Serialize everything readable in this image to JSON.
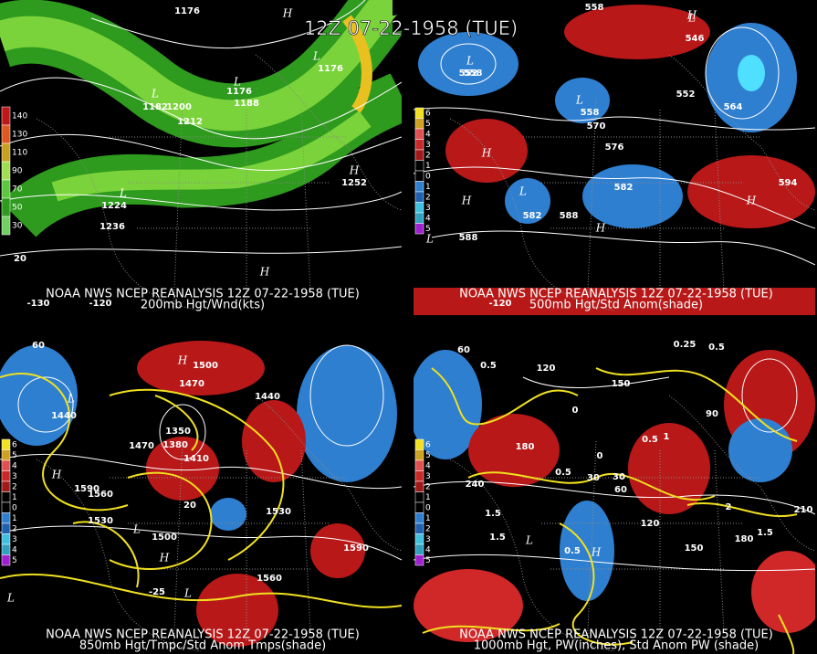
{
  "title": "12Z 07-22-1958 (TUE)",
  "panels": [
    {
      "caption": [
        "NOAA NWS NCEP REANALYSIS 12Z 07-22-1958 (TUE)",
        "200mb Hgt/Wnd(kts)"
      ],
      "legend": [
        "140",
        "130",
        "110",
        "90",
        "70",
        "50",
        "30"
      ],
      "labels": [
        "1176",
        "H",
        "L",
        "1176",
        "L",
        "1182",
        "1200",
        "1212",
        "1188",
        "L",
        "1176",
        "H",
        "1252",
        "L",
        "1224",
        "1236",
        "H",
        "20",
        "-130",
        "-120"
      ]
    },
    {
      "caption": [
        "NOAA NWS NCEP REANALYSIS 12Z 07-22-1958 (TUE)",
        "500mb Hgt/Std Anom(shade)"
      ],
      "legend": [
        "6",
        "5",
        "4",
        "3",
        "2",
        "1",
        "0",
        "1",
        "2",
        "3",
        "4",
        "5"
      ],
      "labels": [
        "558",
        "H",
        "L",
        "552",
        "L",
        "546",
        "552",
        "558",
        "L",
        "558",
        "570",
        "564",
        "576",
        "H",
        "L",
        "582",
        "582",
        "588",
        "H",
        "594",
        "H",
        "588",
        "H",
        "L",
        "-120"
      ]
    },
    {
      "caption": [
        "NOAA NWS NCEP REANALYSIS 12Z 07-22-1958 (TUE)",
        "850mb Hgt/Tmpc/Std Anom Tmps(shade)"
      ],
      "legend": [
        "6",
        "5",
        "4",
        "3",
        "2",
        "1",
        "0",
        "1",
        "2",
        "3",
        "4",
        "5"
      ],
      "labels": [
        "60",
        "H",
        "1500",
        "1470",
        "1440",
        "L",
        "1440",
        "1470",
        "1380",
        "1350",
        "1410",
        "H",
        "1530",
        "1590",
        "1560",
        "L",
        "1500",
        "1530",
        "H",
        "1590",
        "1560",
        "20",
        "-25",
        "L",
        "L"
      ]
    },
    {
      "caption": [
        "NOAA NWS NCEP REANALYSIS 12Z 07-22-1958 (TUE)",
        "1000mb Hgt, PW(inches), Std Anom PW (shade)"
      ],
      "legend": [
        "6",
        "5",
        "4",
        "3",
        "2",
        "1",
        "0",
        "1",
        "2",
        "3",
        "4",
        "5"
      ],
      "labels": [
        "60",
        "0.5",
        "120",
        "0.25",
        "0.5",
        "90",
        "150",
        "30",
        "0",
        "1.5",
        "240",
        "180",
        "0",
        "0.5",
        "30",
        "60",
        "H",
        "0.5",
        "1",
        "2",
        "1.5",
        "210",
        "120",
        "150",
        "180",
        "0.5",
        "L",
        "1.5"
      ]
    }
  ]
}
